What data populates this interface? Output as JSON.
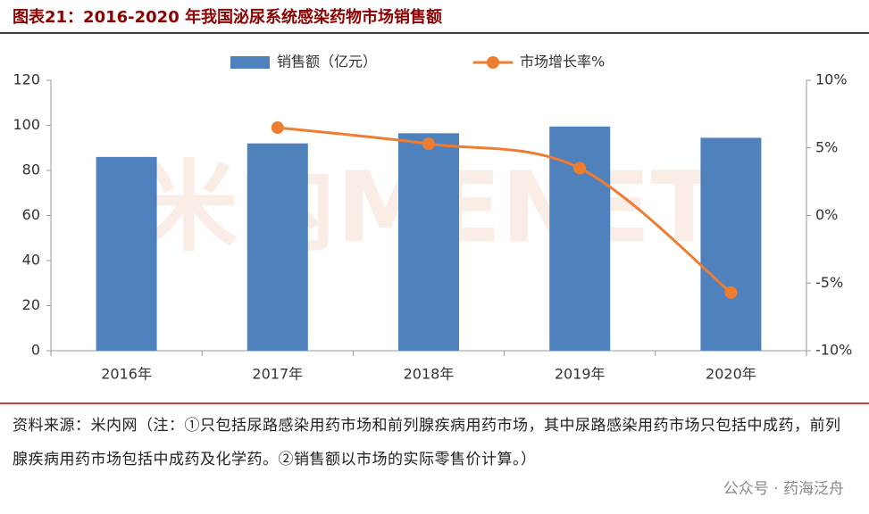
{
  "chart_data": {
    "type": "bar",
    "title": "图表21：2016-2020 年我国泌尿系统感染药物市场销售额",
    "categories": [
      "2016年",
      "2017年",
      "2018年",
      "2019年",
      "2020年"
    ],
    "series": [
      {
        "name": "销售额（亿元）",
        "color": "#4f81bd",
        "values": [
          86,
          92,
          96.5,
          99.5,
          94.5
        ]
      },
      {
        "name": "市场增长率%",
        "type": "line",
        "axis": "y2",
        "color": "#ed7d31",
        "values": [
          null,
          6.5,
          5.3,
          3.5,
          -5.7
        ]
      }
    ],
    "ylim": [
      0,
      120
    ],
    "yticks": [
      0,
      20,
      40,
      60,
      80,
      100,
      120
    ],
    "y2lim": [
      -10,
      10
    ],
    "y2ticks": [
      {
        "value": -10,
        "label": "-10%"
      },
      {
        "value": -5,
        "label": "-5%"
      },
      {
        "value": 0,
        "label": "0%"
      },
      {
        "value": 5,
        "label": "5%"
      },
      {
        "value": 10,
        "label": "10%"
      }
    ],
    "grid": false,
    "legend": "top"
  },
  "source_note": "资料来源：米内网（注：①只包括尿路感染用药市场和前列腺疾病用药市场，其中尿路感染用药市场只包括中成药，前列腺疾病用药市场包括中成药及化学药。②销售额以市场的实际零售价计算。）",
  "watermarks": [
    "米内MENET",
    "公众号 · 药海泛舟"
  ]
}
